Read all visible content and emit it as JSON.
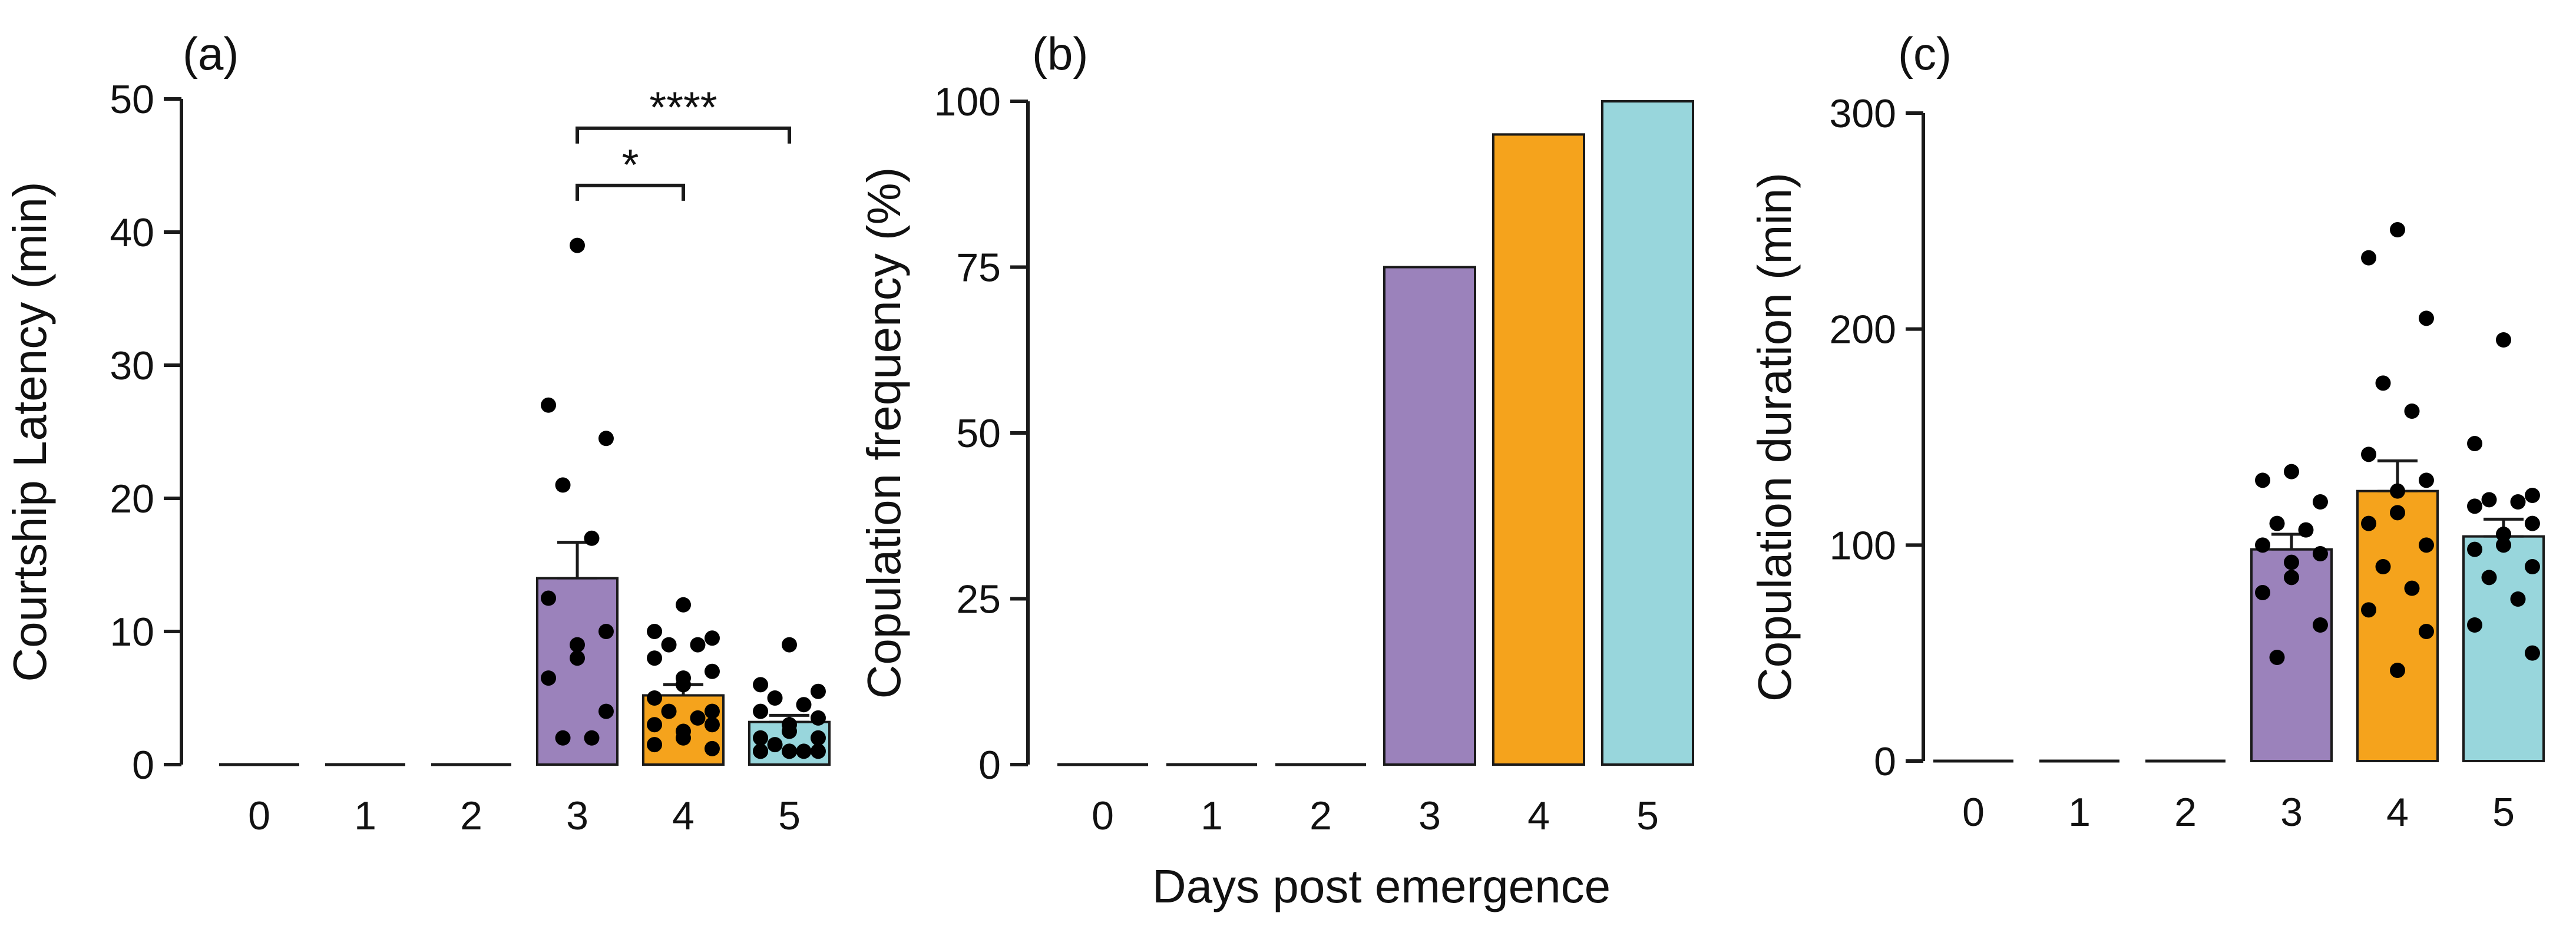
{
  "figure": {
    "shared_xlabel": "Days post emergence",
    "colors": {
      "day3": "#9b82bb",
      "day4": "#f5a31c",
      "day5": "#98d6dc",
      "edge": "#1a1a1a",
      "dot": "#000000"
    }
  },
  "chart_data": [
    {
      "type": "bar",
      "panel_label": "(a)",
      "ylabel": "Courtship Latency (min)",
      "xlabel": "",
      "categories": [
        "0",
        "1",
        "2",
        "3",
        "4",
        "5"
      ],
      "values": [
        0,
        0,
        0,
        14,
        5.2,
        3.2
      ],
      "sem": [
        0,
        0,
        0,
        2.7,
        0.8,
        0.5
      ],
      "ylim": [
        0,
        50
      ],
      "yticks": [
        "0",
        "10",
        "20",
        "30",
        "40",
        "50"
      ],
      "points": {
        "3": [
          39,
          27,
          24.5,
          21,
          17,
          12.5,
          10,
          9,
          8,
          6.5,
          4,
          2,
          2
        ],
        "4": [
          12,
          10,
          9.5,
          9,
          9,
          8,
          7,
          6.5,
          6,
          5,
          4,
          4,
          3.5,
          3,
          3,
          2.5,
          2,
          1.5,
          1.2
        ],
        "5": [
          9,
          6,
          5.5,
          5,
          4.5,
          4,
          3.5,
          3,
          2.5,
          2,
          2,
          1.5,
          1,
          1,
          1,
          1,
          1,
          1
        ]
      },
      "significance": [
        {
          "from": "3",
          "to": "4",
          "label": "*"
        },
        {
          "from": "3",
          "to": "5",
          "label": "****"
        }
      ]
    },
    {
      "type": "bar",
      "panel_label": "(b)",
      "ylabel": "Copulation frequency (%)",
      "xlabel": "Days post emergence",
      "categories": [
        "0",
        "1",
        "2",
        "3",
        "4",
        "5"
      ],
      "values": [
        0,
        0,
        0,
        75,
        95,
        100
      ],
      "ylim": [
        0,
        100
      ],
      "yticks": [
        "0",
        "25",
        "50",
        "75",
        "100"
      ]
    },
    {
      "type": "bar",
      "panel_label": "(c)",
      "ylabel": "Copulation duration (min)",
      "xlabel": "",
      "categories": [
        "0",
        "1",
        "2",
        "3",
        "4",
        "5"
      ],
      "values": [
        0,
        0,
        0,
        98,
        125,
        104
      ],
      "sem": [
        0,
        0,
        0,
        7,
        14,
        8
      ],
      "ylim": [
        0,
        300
      ],
      "yticks": [
        "0",
        "100",
        "200",
        "300"
      ],
      "points": {
        "3": [
          134,
          130,
          120,
          110,
          107,
          100,
          96,
          92,
          85,
          78,
          63,
          48
        ],
        "4": [
          246,
          233,
          205,
          175,
          162,
          142,
          130,
          125,
          115,
          110,
          100,
          90,
          80,
          70,
          60,
          42
        ],
        "5": [
          195,
          147,
          123,
          121,
          120,
          118,
          110,
          105,
          100,
          98,
          90,
          85,
          75,
          63,
          50
        ]
      }
    }
  ]
}
